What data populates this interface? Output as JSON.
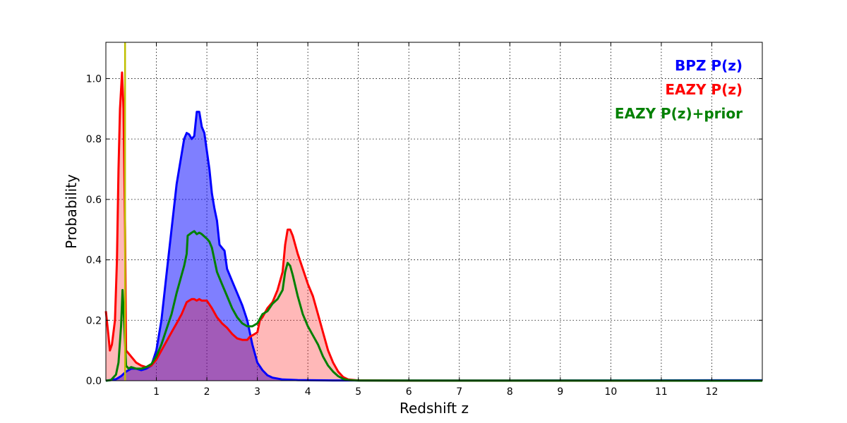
{
  "chart_data": {
    "type": "area",
    "xlabel": "Redshift z",
    "ylabel": "Probability",
    "xlim": [
      0,
      13
    ],
    "ylim": [
      0,
      1.12
    ],
    "xticks": [
      1,
      2,
      3,
      4,
      5,
      6,
      7,
      8,
      9,
      10,
      11,
      12
    ],
    "yticks": [
      0.0,
      0.2,
      0.4,
      0.6,
      0.8,
      1.0
    ],
    "grid": true,
    "legend_position": "top-right",
    "vline": {
      "x": 0.38,
      "color": "#bfbf00"
    },
    "series": [
      {
        "name": "BPZ P(z)",
        "color": "#0000ff",
        "fill": "#0000ff",
        "fill_opacity": 0.5,
        "points": [
          [
            0.0,
            0.0
          ],
          [
            0.2,
            0.005
          ],
          [
            0.3,
            0.015
          ],
          [
            0.4,
            0.03
          ],
          [
            0.5,
            0.04
          ],
          [
            0.6,
            0.04
          ],
          [
            0.7,
            0.035
          ],
          [
            0.8,
            0.04
          ],
          [
            0.9,
            0.05
          ],
          [
            1.0,
            0.1
          ],
          [
            1.1,
            0.2
          ],
          [
            1.2,
            0.35
          ],
          [
            1.3,
            0.5
          ],
          [
            1.4,
            0.65
          ],
          [
            1.5,
            0.75
          ],
          [
            1.55,
            0.8
          ],
          [
            1.6,
            0.82
          ],
          [
            1.65,
            0.815
          ],
          [
            1.7,
            0.8
          ],
          [
            1.75,
            0.81
          ],
          [
            1.8,
            0.89
          ],
          [
            1.85,
            0.89
          ],
          [
            1.9,
            0.84
          ],
          [
            1.95,
            0.82
          ],
          [
            2.0,
            0.76
          ],
          [
            2.05,
            0.7
          ],
          [
            2.1,
            0.62
          ],
          [
            2.15,
            0.57
          ],
          [
            2.2,
            0.53
          ],
          [
            2.25,
            0.45
          ],
          [
            2.3,
            0.44
          ],
          [
            2.35,
            0.43
          ],
          [
            2.4,
            0.37
          ],
          [
            2.5,
            0.33
          ],
          [
            2.6,
            0.29
          ],
          [
            2.7,
            0.25
          ],
          [
            2.8,
            0.2
          ],
          [
            2.9,
            0.12
          ],
          [
            3.0,
            0.06
          ],
          [
            3.1,
            0.035
          ],
          [
            3.2,
            0.018
          ],
          [
            3.3,
            0.01
          ],
          [
            3.5,
            0.004
          ],
          [
            3.8,
            0.002
          ],
          [
            4.5,
            0.001
          ],
          [
            6.0,
            0.0005
          ],
          [
            8.0,
            0.0008
          ],
          [
            10.0,
            0.001
          ],
          [
            12.0,
            0.0015
          ],
          [
            13.0,
            0.0015
          ]
        ]
      },
      {
        "name": "EAZY P(z)",
        "color": "#ff0000",
        "fill": "#ff0000",
        "fill_opacity": 0.28,
        "points": [
          [
            0.0,
            0.23
          ],
          [
            0.05,
            0.15
          ],
          [
            0.08,
            0.1
          ],
          [
            0.12,
            0.12
          ],
          [
            0.18,
            0.2
          ],
          [
            0.22,
            0.4
          ],
          [
            0.25,
            0.7
          ],
          [
            0.28,
            0.9
          ],
          [
            0.32,
            1.02
          ],
          [
            0.35,
            0.9
          ],
          [
            0.38,
            0.5
          ],
          [
            0.4,
            0.1
          ],
          [
            0.45,
            0.09
          ],
          [
            0.5,
            0.08
          ],
          [
            0.6,
            0.06
          ],
          [
            0.7,
            0.05
          ],
          [
            0.8,
            0.045
          ],
          [
            0.9,
            0.05
          ],
          [
            1.0,
            0.07
          ],
          [
            1.1,
            0.1
          ],
          [
            1.2,
            0.13
          ],
          [
            1.3,
            0.16
          ],
          [
            1.4,
            0.19
          ],
          [
            1.5,
            0.22
          ],
          [
            1.6,
            0.26
          ],
          [
            1.65,
            0.265
          ],
          [
            1.7,
            0.27
          ],
          [
            1.75,
            0.27
          ],
          [
            1.8,
            0.265
          ],
          [
            1.85,
            0.27
          ],
          [
            1.9,
            0.265
          ],
          [
            2.0,
            0.265
          ],
          [
            2.1,
            0.24
          ],
          [
            2.2,
            0.21
          ],
          [
            2.3,
            0.19
          ],
          [
            2.4,
            0.175
          ],
          [
            2.5,
            0.155
          ],
          [
            2.6,
            0.14
          ],
          [
            2.7,
            0.135
          ],
          [
            2.8,
            0.135
          ],
          [
            2.85,
            0.145
          ],
          [
            2.9,
            0.15
          ],
          [
            2.95,
            0.155
          ],
          [
            3.0,
            0.16
          ],
          [
            3.05,
            0.2
          ],
          [
            3.1,
            0.21
          ],
          [
            3.2,
            0.24
          ],
          [
            3.3,
            0.26
          ],
          [
            3.4,
            0.3
          ],
          [
            3.5,
            0.36
          ],
          [
            3.55,
            0.45
          ],
          [
            3.6,
            0.5
          ],
          [
            3.65,
            0.5
          ],
          [
            3.7,
            0.48
          ],
          [
            3.8,
            0.42
          ],
          [
            3.9,
            0.37
          ],
          [
            4.0,
            0.32
          ],
          [
            4.1,
            0.28
          ],
          [
            4.2,
            0.22
          ],
          [
            4.3,
            0.16
          ],
          [
            4.4,
            0.1
          ],
          [
            4.5,
            0.06
          ],
          [
            4.6,
            0.03
          ],
          [
            4.7,
            0.012
          ],
          [
            4.8,
            0.004
          ],
          [
            5.0,
            0.001
          ],
          [
            6.0,
            0.0003
          ],
          [
            13.0,
            0.0
          ]
        ]
      },
      {
        "name": "EAZY P(z)+prior",
        "color": "#008000",
        "points": [
          [
            0.0,
            0.0
          ],
          [
            0.1,
            0.002
          ],
          [
            0.2,
            0.02
          ],
          [
            0.25,
            0.06
          ],
          [
            0.3,
            0.18
          ],
          [
            0.33,
            0.3
          ],
          [
            0.36,
            0.2
          ],
          [
            0.4,
            0.05
          ],
          [
            0.45,
            0.04
          ],
          [
            0.5,
            0.045
          ],
          [
            0.6,
            0.04
          ],
          [
            0.7,
            0.04
          ],
          [
            0.8,
            0.045
          ],
          [
            0.9,
            0.055
          ],
          [
            1.0,
            0.08
          ],
          [
            1.1,
            0.12
          ],
          [
            1.2,
            0.17
          ],
          [
            1.3,
            0.22
          ],
          [
            1.4,
            0.29
          ],
          [
            1.5,
            0.35
          ],
          [
            1.55,
            0.38
          ],
          [
            1.6,
            0.42
          ],
          [
            1.62,
            0.48
          ],
          [
            1.7,
            0.49
          ],
          [
            1.75,
            0.495
          ],
          [
            1.8,
            0.485
          ],
          [
            1.85,
            0.49
          ],
          [
            1.9,
            0.485
          ],
          [
            2.0,
            0.47
          ],
          [
            2.05,
            0.46
          ],
          [
            2.1,
            0.44
          ],
          [
            2.2,
            0.36
          ],
          [
            2.3,
            0.32
          ],
          [
            2.4,
            0.28
          ],
          [
            2.5,
            0.24
          ],
          [
            2.6,
            0.21
          ],
          [
            2.7,
            0.19
          ],
          [
            2.8,
            0.18
          ],
          [
            2.9,
            0.18
          ],
          [
            3.0,
            0.19
          ],
          [
            3.1,
            0.22
          ],
          [
            3.2,
            0.23
          ],
          [
            3.3,
            0.255
          ],
          [
            3.4,
            0.27
          ],
          [
            3.5,
            0.3
          ],
          [
            3.55,
            0.36
          ],
          [
            3.6,
            0.39
          ],
          [
            3.65,
            0.38
          ],
          [
            3.7,
            0.35
          ],
          [
            3.8,
            0.28
          ],
          [
            3.9,
            0.22
          ],
          [
            4.0,
            0.18
          ],
          [
            4.1,
            0.15
          ],
          [
            4.2,
            0.12
          ],
          [
            4.3,
            0.08
          ],
          [
            4.4,
            0.05
          ],
          [
            4.5,
            0.03
          ],
          [
            4.6,
            0.015
          ],
          [
            4.7,
            0.006
          ],
          [
            4.8,
            0.002
          ],
          [
            5.0,
            0.0005
          ],
          [
            13.0,
            0.0
          ]
        ]
      }
    ]
  }
}
